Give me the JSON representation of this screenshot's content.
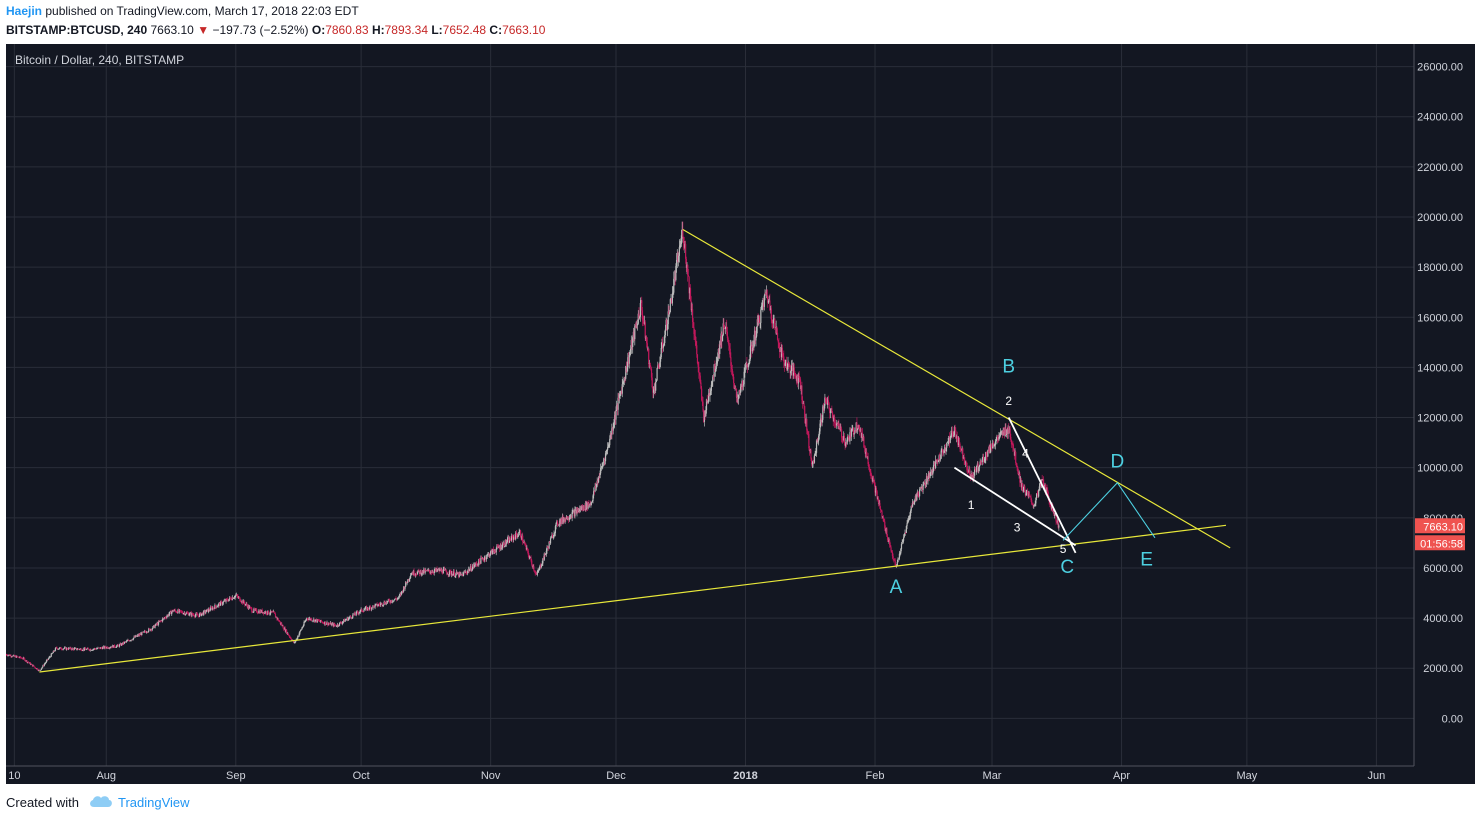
{
  "header": {
    "author": "Haejin",
    "published": "published on TradingView.com, March 17, 2018 22:03 EDT",
    "symbol": "BITSTAMP:BTCUSD, 240",
    "last": "7663.10",
    "change": "−197.73 (−2.52%)",
    "open_label": "O:",
    "open": "7860.83",
    "high_label": "H:",
    "high": "7893.34",
    "low_label": "L:",
    "low": "7652.48",
    "close_label": "C:",
    "close": "7663.10"
  },
  "footer": {
    "created_with": "Created with",
    "brand": "TradingView"
  },
  "colors": {
    "background": "#131722",
    "grid": "#2a2e39",
    "up": "#bdbdbd",
    "down": "#c2185b",
    "trendline": "#e8e83a",
    "wave": "#ffffff",
    "abc_label": "#4dd0e1",
    "price_tag": "#ef5350"
  },
  "chart_data": {
    "type": "candlestick",
    "title": "Bitcoin / Dollar, 240, BITSTAMP",
    "y_axis": {
      "ticks": [
        "26000.00",
        "24000.00",
        "22000.00",
        "20000.00",
        "18000.00",
        "16000.00",
        "14000.00",
        "12000.00",
        "10000.00",
        "8000.00",
        "6000.00",
        "4000.00",
        "2000.00",
        "0.00"
      ],
      "tick_values": [
        26000,
        24000,
        22000,
        20000,
        18000,
        16000,
        14000,
        12000,
        10000,
        8000,
        6000,
        4000,
        2000,
        0
      ],
      "range": [
        -1900,
        26900
      ],
      "grid": true
    },
    "x_axis": {
      "ticks": [
        "10",
        "Aug",
        "Sep",
        "Oct",
        "Nov",
        "Dec",
        "2018",
        "Feb",
        "Mar",
        "Apr",
        "May",
        "Jun"
      ],
      "tick_dates": [
        "2017-07-10",
        "2017-08-01",
        "2017-09-01",
        "2017-10-01",
        "2017-11-01",
        "2017-12-01",
        "2018-01-01",
        "2018-02-01",
        "2018-03-01",
        "2018-04-01",
        "2018-05-01",
        "2018-06-01"
      ],
      "range": [
        "2017-07-08",
        "2018-06-10"
      ]
    },
    "last_price": "7663.10",
    "countdown": "01:56:58",
    "price_path": [
      [
        "2017-07-08",
        2550
      ],
      [
        "2017-07-12",
        2400
      ],
      [
        "2017-07-16",
        1900
      ],
      [
        "2017-07-20",
        2800
      ],
      [
        "2017-07-28",
        2750
      ],
      [
        "2017-08-04",
        2900
      ],
      [
        "2017-08-12",
        3600
      ],
      [
        "2017-08-17",
        4300
      ],
      [
        "2017-08-23",
        4100
      ],
      [
        "2017-09-01",
        4900
      ],
      [
        "2017-09-05",
        4300
      ],
      [
        "2017-09-10",
        4200
      ],
      [
        "2017-09-15",
        3000
      ],
      [
        "2017-09-18",
        4000
      ],
      [
        "2017-09-25",
        3700
      ],
      [
        "2017-10-01",
        4300
      ],
      [
        "2017-10-10",
        4800
      ],
      [
        "2017-10-13",
        5800
      ],
      [
        "2017-10-20",
        5900
      ],
      [
        "2017-10-25",
        5700
      ],
      [
        "2017-11-01",
        6600
      ],
      [
        "2017-11-08",
        7400
      ],
      [
        "2017-11-12",
        5700
      ],
      [
        "2017-11-17",
        7800
      ],
      [
        "2017-11-25",
        8600
      ],
      [
        "2017-11-29",
        10800
      ],
      [
        "2017-12-07",
        16500
      ],
      [
        "2017-12-10",
        13000
      ],
      [
        "2017-12-14",
        16500
      ],
      [
        "2017-12-17",
        19500
      ],
      [
        "2017-12-22",
        12000
      ],
      [
        "2017-12-27",
        15800
      ],
      [
        "2017-12-30",
        12600
      ],
      [
        "2018-01-06",
        17000
      ],
      [
        "2018-01-10",
        14300
      ],
      [
        "2018-01-14",
        13500
      ],
      [
        "2018-01-17",
        10000
      ],
      [
        "2018-01-20",
        12700
      ],
      [
        "2018-01-25",
        11000
      ],
      [
        "2018-01-28",
        11800
      ],
      [
        "2018-02-02",
        8500
      ],
      [
        "2018-02-06",
        6000
      ],
      [
        "2018-02-10",
        8600
      ],
      [
        "2018-02-15",
        10000
      ],
      [
        "2018-02-20",
        11500
      ],
      [
        "2018-02-24",
        9600
      ],
      [
        "2018-03-01",
        10900
      ],
      [
        "2018-03-05",
        11600
      ],
      [
        "2018-03-08",
        9300
      ],
      [
        "2018-03-11",
        8500
      ],
      [
        "2018-03-13",
        9500
      ],
      [
        "2018-03-17",
        7663
      ]
    ],
    "annotations": [
      {
        "text": "A",
        "date": "2018-02-06",
        "price": 5000
      },
      {
        "text": "B",
        "date": "2018-03-05",
        "price": 13800
      },
      {
        "text": "C",
        "date": "2018-03-19",
        "price": 5800
      },
      {
        "text": "D",
        "date": "2018-03-31",
        "price": 10000
      },
      {
        "text": "E",
        "date": "2018-04-07",
        "price": 6100
      },
      {
        "text": "1",
        "date": "2018-02-24",
        "price": 8350
      },
      {
        "text": "2",
        "date": "2018-03-05",
        "price": 12500
      },
      {
        "text": "3",
        "date": "2018-03-07",
        "price": 7450
      },
      {
        "text": "4",
        "date": "2018-03-09",
        "price": 10400
      },
      {
        "text": "5",
        "date": "2018-03-18",
        "price": 6600
      }
    ],
    "trendlines": [
      {
        "name": "upper",
        "points": [
          [
            "2017-12-17",
            19500
          ],
          [
            "2018-04-27",
            6800
          ]
        ]
      },
      {
        "name": "lower",
        "points": [
          [
            "2017-07-16",
            1850
          ],
          [
            "2018-04-26",
            7700
          ]
        ]
      }
    ],
    "waves": [
      {
        "name": "wedge-upper",
        "points": [
          [
            "2018-03-05",
            12000
          ],
          [
            "2018-03-21",
            6600
          ]
        ]
      },
      {
        "name": "wedge-lower",
        "points": [
          [
            "2018-02-20",
            10000
          ],
          [
            "2018-03-21",
            6900
          ]
        ]
      },
      {
        "name": "d-leg",
        "points": [
          [
            "2018-03-18",
            7100
          ],
          [
            "2018-03-31",
            9400
          ],
          [
            "2018-04-09",
            7200
          ]
        ]
      }
    ]
  }
}
